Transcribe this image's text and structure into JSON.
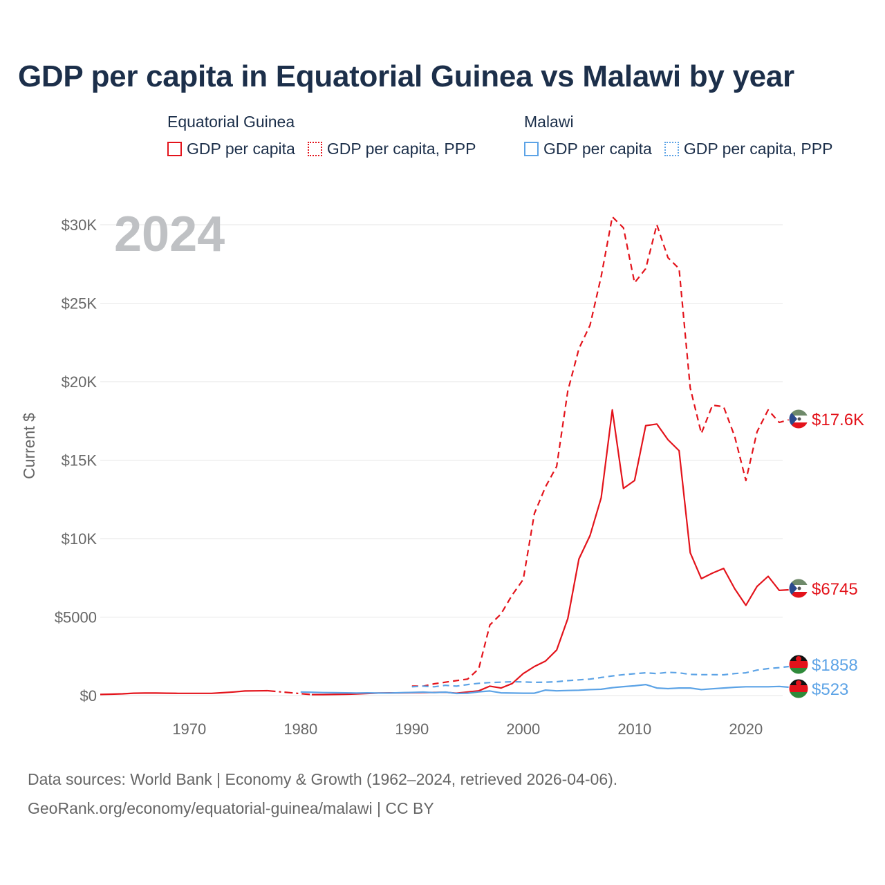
{
  "title": "GDP per capita in Equatorial Guinea vs Malawi by year",
  "legend": {
    "groups": [
      {
        "name": "Equatorial Guinea",
        "items": [
          "GDP per capita",
          "GDP per capita, PPP"
        ],
        "color": "#e3131b"
      },
      {
        "name": "Malawi",
        "items": [
          "GDP per capita",
          "GDP per capita, PPP"
        ],
        "color": "#5ca3e6"
      }
    ]
  },
  "year_label": "2024",
  "footer": {
    "line1": "Data sources: World Bank | Economy & Growth (1962–2024, retrieved 2026-04-06).",
    "line2": "GeoRank.org/economy/equatorial-guinea/malawi | CC BY"
  },
  "colors": {
    "eq": "#e3131b",
    "mw": "#5ca3e6",
    "grid": "#e6e6e6",
    "axis_text": "#666666"
  },
  "chart_data": {
    "type": "line",
    "title": "GDP per capita in Equatorial Guinea vs Malawi by year",
    "xlabel": "",
    "ylabel": "Current $",
    "xlim": [
      1962,
      2024
    ],
    "ylim": [
      0,
      30000
    ],
    "x_ticks": [
      1970,
      1980,
      1990,
      2000,
      2010,
      2020
    ],
    "x_tick_labels": [
      "1970",
      "1980",
      "1990",
      "2000",
      "2010",
      "2020"
    ],
    "y_ticks": [
      0,
      5000,
      10000,
      15000,
      20000,
      25000,
      30000
    ],
    "y_tick_labels": [
      "$0",
      "$5000",
      "$10K",
      "$15K",
      "$20K",
      "$25K",
      "$30K"
    ],
    "series": [
      {
        "name": "Equatorial Guinea — GDP per capita",
        "color": "#e3131b",
        "style": "solid",
        "end_label": "$6745",
        "flag": "equatorial-guinea",
        "points": [
          [
            1962,
            70
          ],
          [
            1963,
            90
          ],
          [
            1964,
            110
          ],
          [
            1965,
            150
          ],
          [
            1966,
            160
          ],
          [
            1967,
            160
          ],
          [
            1968,
            150
          ],
          [
            1969,
            140
          ],
          [
            1970,
            140
          ],
          [
            1971,
            140
          ],
          [
            1972,
            140
          ],
          [
            1973,
            180
          ],
          [
            1974,
            230
          ],
          [
            1975,
            290
          ],
          [
            1976,
            300
          ],
          [
            1977,
            310
          ],
          [
            1978,
            null
          ],
          [
            1979,
            null
          ],
          [
            1980,
            null
          ],
          [
            1981,
            60
          ],
          [
            1982,
            60
          ],
          [
            1983,
            70
          ],
          [
            1984,
            80
          ],
          [
            1985,
            100
          ],
          [
            1986,
            130
          ],
          [
            1987,
            160
          ],
          [
            1988,
            170
          ],
          [
            1989,
            170
          ],
          [
            1990,
            180
          ],
          [
            1991,
            190
          ],
          [
            1992,
            200
          ],
          [
            1993,
            210
          ],
          [
            1994,
            150
          ],
          [
            1995,
            230
          ],
          [
            1996,
            300
          ],
          [
            1997,
            600
          ],
          [
            1998,
            480
          ],
          [
            1999,
            760
          ],
          [
            2000,
            1400
          ],
          [
            2001,
            1850
          ],
          [
            2002,
            2200
          ],
          [
            2003,
            2900
          ],
          [
            2004,
            4900
          ],
          [
            2005,
            8700
          ],
          [
            2006,
            10200
          ],
          [
            2007,
            12600
          ],
          [
            2008,
            18200
          ],
          [
            2009,
            13200
          ],
          [
            2010,
            13700
          ],
          [
            2011,
            17200
          ],
          [
            2012,
            17300
          ],
          [
            2013,
            16300
          ],
          [
            2014,
            15600
          ],
          [
            2015,
            9100
          ],
          [
            2016,
            7450
          ],
          [
            2017,
            7800
          ],
          [
            2018,
            8100
          ],
          [
            2019,
            6800
          ],
          [
            2020,
            5750
          ],
          [
            2021,
            6950
          ],
          [
            2022,
            7600
          ],
          [
            2023,
            6700
          ],
          [
            2024,
            6745
          ]
        ]
      },
      {
        "name": "Equatorial Guinea — GDP per capita, PPP",
        "color": "#e3131b",
        "style": "dashed",
        "end_label": "$17.6K",
        "flag": "equatorial-guinea",
        "points": [
          [
            1990,
            600
          ],
          [
            1991,
            600
          ],
          [
            1992,
            750
          ],
          [
            1993,
            850
          ],
          [
            1994,
            950
          ],
          [
            1995,
            1050
          ],
          [
            1996,
            1700
          ],
          [
            1997,
            4500
          ],
          [
            1998,
            5200
          ],
          [
            1999,
            6400
          ],
          [
            2000,
            7400
          ],
          [
            2001,
            11600
          ],
          [
            2002,
            13300
          ],
          [
            2003,
            14600
          ],
          [
            2004,
            19400
          ],
          [
            2005,
            22100
          ],
          [
            2006,
            23600
          ],
          [
            2007,
            26700
          ],
          [
            2008,
            30500
          ],
          [
            2009,
            29800
          ],
          [
            2010,
            26300
          ],
          [
            2011,
            27200
          ],
          [
            2012,
            30000
          ],
          [
            2013,
            27900
          ],
          [
            2014,
            27200
          ],
          [
            2015,
            19600
          ],
          [
            2016,
            16700
          ],
          [
            2017,
            18500
          ],
          [
            2018,
            18400
          ],
          [
            2019,
            16500
          ],
          [
            2020,
            13700
          ],
          [
            2021,
            16800
          ],
          [
            2022,
            18200
          ],
          [
            2023,
            17400
          ],
          [
            2024,
            17600
          ]
        ]
      },
      {
        "name": "Malawi — GDP per capita",
        "color": "#5ca3e6",
        "style": "solid",
        "end_label": "$523",
        "flag": "malawi",
        "points": [
          [
            1980,
            230
          ],
          [
            1981,
            210
          ],
          [
            1982,
            190
          ],
          [
            1983,
            180
          ],
          [
            1984,
            170
          ],
          [
            1985,
            160
          ],
          [
            1986,
            170
          ],
          [
            1987,
            160
          ],
          [
            1988,
            160
          ],
          [
            1989,
            180
          ],
          [
            1990,
            200
          ],
          [
            1991,
            220
          ],
          [
            1992,
            190
          ],
          [
            1993,
            220
          ],
          [
            1994,
            130
          ],
          [
            1995,
            150
          ],
          [
            1996,
            240
          ],
          [
            1997,
            290
          ],
          [
            1998,
            170
          ],
          [
            1999,
            160
          ],
          [
            2000,
            150
          ],
          [
            2001,
            150
          ],
          [
            2002,
            350
          ],
          [
            2003,
            300
          ],
          [
            2004,
            320
          ],
          [
            2005,
            340
          ],
          [
            2006,
            380
          ],
          [
            2007,
            400
          ],
          [
            2008,
            500
          ],
          [
            2009,
            570
          ],
          [
            2010,
            620
          ],
          [
            2011,
            700
          ],
          [
            2012,
            480
          ],
          [
            2013,
            440
          ],
          [
            2014,
            480
          ],
          [
            2015,
            480
          ],
          [
            2016,
            380
          ],
          [
            2017,
            430
          ],
          [
            2018,
            480
          ],
          [
            2019,
            530
          ],
          [
            2020,
            560
          ],
          [
            2021,
            560
          ],
          [
            2022,
            560
          ],
          [
            2023,
            580
          ],
          [
            2024,
            523
          ]
        ]
      },
      {
        "name": "Malawi — GDP per capita, PPP",
        "color": "#5ca3e6",
        "style": "dashed",
        "end_label": "$1858",
        "flag": "malawi",
        "points": [
          [
            1990,
            560
          ],
          [
            1991,
            600
          ],
          [
            1992,
            560
          ],
          [
            1993,
            650
          ],
          [
            1994,
            600
          ],
          [
            1995,
            700
          ],
          [
            1996,
            780
          ],
          [
            1997,
            830
          ],
          [
            1998,
            850
          ],
          [
            1999,
            880
          ],
          [
            2000,
            870
          ],
          [
            2001,
            840
          ],
          [
            2002,
            850
          ],
          [
            2003,
            880
          ],
          [
            2004,
            950
          ],
          [
            2005,
            1000
          ],
          [
            2006,
            1050
          ],
          [
            2007,
            1150
          ],
          [
            2008,
            1250
          ],
          [
            2009,
            1330
          ],
          [
            2010,
            1390
          ],
          [
            2011,
            1450
          ],
          [
            2012,
            1400
          ],
          [
            2013,
            1480
          ],
          [
            2014,
            1450
          ],
          [
            2015,
            1350
          ],
          [
            2016,
            1330
          ],
          [
            2017,
            1330
          ],
          [
            2018,
            1320
          ],
          [
            2019,
            1400
          ],
          [
            2020,
            1450
          ],
          [
            2021,
            1620
          ],
          [
            2022,
            1720
          ],
          [
            2023,
            1780
          ],
          [
            2024,
            1858
          ]
        ]
      }
    ],
    "end_labels_order": [
      "$17.6K",
      "$6745",
      "$1858",
      "$523"
    ]
  }
}
